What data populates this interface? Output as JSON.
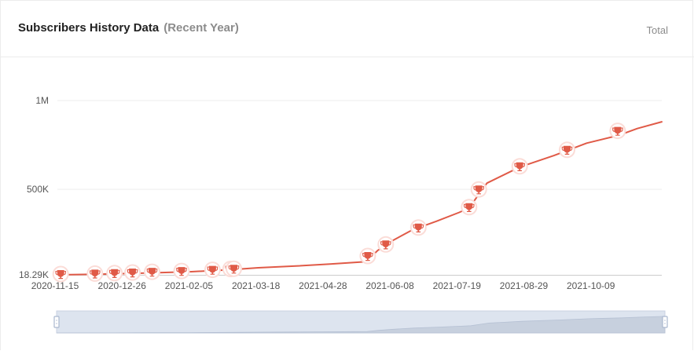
{
  "header": {
    "title": "Subscribers History Data",
    "subtitle": "(Recent Year)",
    "total_label": "Total"
  },
  "colors": {
    "line": "#e05a47",
    "marker_fill": "#e05a47",
    "marker_halo": "#fbdcd7",
    "grid": "#eeeeee",
    "axis": "#cccccc",
    "tick_text": "#555555",
    "zoom_bg": "#dde4ef",
    "zoom_area": "#c7d0de",
    "zoom_handle": "#aab8cf"
  },
  "chart_data": {
    "type": "line",
    "title": "Subscribers History Data",
    "y_tick_labels": [
      "18.29K",
      "500K",
      "1M"
    ],
    "y_ticks": [
      18290,
      500000,
      1000000
    ],
    "ylim": [
      18290,
      1000000
    ],
    "x_tick_labels": [
      "2020-11-15",
      "2020-12-26",
      "2021-02-05",
      "2021-03-18",
      "2021-04-28",
      "2021-06-08",
      "2021-07-19",
      "2021-08-29",
      "2021-10-09"
    ],
    "xlim": [
      "2020-11-15",
      "2021-11-20"
    ],
    "grid": true,
    "series": [
      {
        "points": [
          [
            "2020-11-15",
            18290
          ],
          [
            "2020-12-01",
            20500
          ],
          [
            "2020-12-20",
            24000
          ],
          [
            "2021-01-10",
            29000
          ],
          [
            "2021-02-05",
            36000
          ],
          [
            "2021-03-01",
            47000
          ],
          [
            "2021-03-18",
            58000
          ],
          [
            "2021-04-10",
            68000
          ],
          [
            "2021-05-01",
            79000
          ],
          [
            "2021-05-23",
            92000
          ],
          [
            "2021-05-30",
            155000
          ],
          [
            "2021-06-08",
            210000
          ],
          [
            "2021-06-20",
            270000
          ],
          [
            "2021-07-05",
            320000
          ],
          [
            "2021-07-19",
            370000
          ],
          [
            "2021-07-25",
            395000
          ],
          [
            "2021-08-05",
            535000
          ],
          [
            "2021-08-25",
            625000
          ],
          [
            "2021-09-15",
            690000
          ],
          [
            "2021-10-05",
            760000
          ],
          [
            "2021-10-25",
            805000
          ],
          [
            "2021-11-05",
            842000
          ],
          [
            "2021-11-20",
            880000
          ]
        ]
      }
    ],
    "milestones": [
      [
        "2020-11-17",
        18290
      ],
      [
        "2020-12-08",
        20800
      ],
      [
        "2020-12-20",
        23500
      ],
      [
        "2020-12-31",
        27000
      ],
      [
        "2021-01-12",
        31000
      ],
      [
        "2021-01-30",
        35500
      ],
      [
        "2021-02-18",
        42000
      ],
      [
        "2021-03-01",
        47000
      ],
      [
        "2021-03-03",
        48500
      ],
      [
        "2021-05-24",
        120000
      ],
      [
        "2021-06-04",
        185000
      ],
      [
        "2021-06-24",
        280000
      ],
      [
        "2021-07-25",
        395000
      ],
      [
        "2021-07-31",
        495000
      ],
      [
        "2021-08-25",
        625000
      ],
      [
        "2021-09-23",
        718000
      ],
      [
        "2021-10-24",
        825000
      ]
    ]
  }
}
